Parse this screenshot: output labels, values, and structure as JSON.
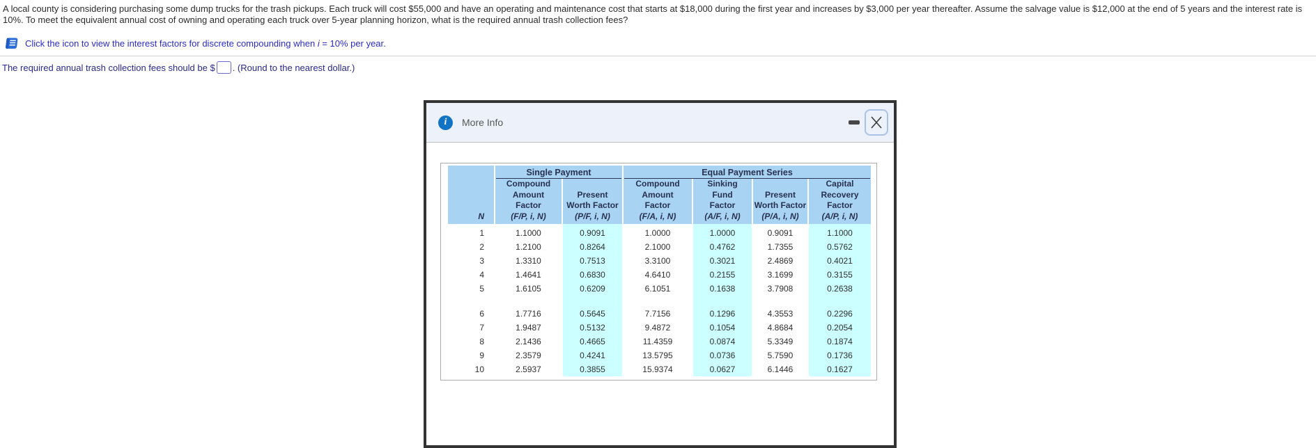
{
  "question": {
    "text": "A local county is considering purchasing some dump trucks for the trash pickups. Each truck will cost $55,000 and have an operating and maintenance cost that starts at $18,000 during the first year and increases by $3,000 per year thereafter. Assume the salvage value is $12,000 at the end of 5 years and the interest rate is 10%. To meet the equivalent annual cost of owning and operating each truck over 5-year planning horizon, what is the required annual trash collection fees?",
    "instruction": {
      "pre": "Click the icon to view the interest factors for discrete compounding when ",
      "i_var": "i",
      "post": " = 10% per year."
    },
    "answer_line": {
      "prefix": "The required annual trash collection fees should be $",
      "input_value": "",
      "suffix": ". (Round to the nearest dollar.)"
    }
  },
  "modal": {
    "title": "More Info"
  },
  "table": {
    "group_headers": [
      {
        "label": "Single Payment",
        "span": 2
      },
      {
        "label": "Equal Payment Series",
        "span": 4
      }
    ],
    "columns": [
      {
        "label_lines": [
          "N"
        ],
        "notation": ""
      },
      {
        "label_lines": [
          "Compound",
          "Amount",
          "Factor"
        ],
        "notation": "(F/P, i, N)"
      },
      {
        "label_lines": [
          "Present",
          "Worth Factor"
        ],
        "notation": "(P/F, i, N)"
      },
      {
        "label_lines": [
          "Compound",
          "Amount",
          "Factor"
        ],
        "notation": "(F/A, i, N)"
      },
      {
        "label_lines": [
          "Sinking",
          "Fund",
          "Factor"
        ],
        "notation": "(A/F, i, N)"
      },
      {
        "label_lines": [
          "Present",
          "Worth Factor"
        ],
        "notation": "(P/A, i, N)"
      },
      {
        "label_lines": [
          "Capital",
          "Recovery",
          "Factor"
        ],
        "notation": "(A/P, i, N)"
      }
    ],
    "gap_after_row": 5,
    "rows": [
      [
        "1",
        "1.1000",
        "0.9091",
        "1.0000",
        "1.0000",
        "0.9091",
        "1.1000"
      ],
      [
        "2",
        "1.2100",
        "0.8264",
        "2.1000",
        "0.4762",
        "1.7355",
        "0.5762"
      ],
      [
        "3",
        "1.3310",
        "0.7513",
        "3.3100",
        "0.3021",
        "2.4869",
        "0.4021"
      ],
      [
        "4",
        "1.4641",
        "0.6830",
        "4.6410",
        "0.2155",
        "3.1699",
        "0.3155"
      ],
      [
        "5",
        "1.6105",
        "0.6209",
        "6.1051",
        "0.1638",
        "3.7908",
        "0.2638"
      ],
      [
        "6",
        "1.7716",
        "0.5645",
        "7.7156",
        "0.1296",
        "4.3553",
        "0.2296"
      ],
      [
        "7",
        "1.9487",
        "0.5132",
        "9.4872",
        "0.1054",
        "4.8684",
        "0.2054"
      ],
      [
        "8",
        "2.1436",
        "0.4665",
        "11.4359",
        "0.0874",
        "5.3349",
        "0.1874"
      ],
      [
        "9",
        "2.3579",
        "0.4241",
        "13.5795",
        "0.0736",
        "5.7590",
        "0.1736"
      ],
      [
        "10",
        "2.5937",
        "0.3855",
        "15.9374",
        "0.0627",
        "6.1446",
        "0.1627"
      ]
    ]
  },
  "colors": {
    "table_header_bg": "#a8d3f2",
    "highlight_column_bg": "#ccffff",
    "modal_header_bg": "#edf2fa",
    "modal_border": "#333333",
    "info_icon_bg": "#1173c4",
    "instruction_text": "#2b2bc8",
    "answer_text": "#28288c"
  }
}
